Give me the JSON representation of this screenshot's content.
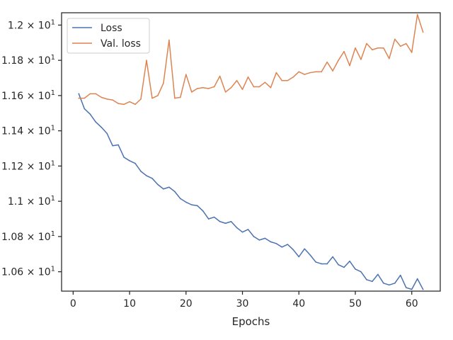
{
  "chart_data": {
    "type": "line",
    "title": "",
    "xlabel": "Epochs",
    "ylabel": "",
    "xlim": [
      -2.05,
      65.05
    ],
    "ylim": [
      10.49,
      12.07
    ],
    "x_ticks": [
      {
        "value": 0,
        "label": "0"
      },
      {
        "value": 10,
        "label": "10"
      },
      {
        "value": 20,
        "label": "20"
      },
      {
        "value": 30,
        "label": "30"
      },
      {
        "value": 40,
        "label": "40"
      },
      {
        "value": 50,
        "label": "50"
      },
      {
        "value": 60,
        "label": "60"
      }
    ],
    "y_ticks": [
      {
        "value": 10.6,
        "mantissa": "1.06",
        "label": "1.06 × 10^1"
      },
      {
        "value": 10.8,
        "mantissa": "1.08",
        "label": "1.08 × 10^1"
      },
      {
        "value": 11.0,
        "mantissa": "1.1",
        "label": "1.1 × 10^1"
      },
      {
        "value": 11.2,
        "mantissa": "1.12",
        "label": "1.12 × 10^1"
      },
      {
        "value": 11.4,
        "mantissa": "1.14",
        "label": "1.14 × 10^1"
      },
      {
        "value": 11.6,
        "mantissa": "1.16",
        "label": "1.16 × 10^1"
      },
      {
        "value": 11.8,
        "mantissa": "1.18",
        "label": "1.18 × 10^1"
      },
      {
        "value": 12.0,
        "mantissa": "1.2",
        "label": "1.2 × 10^1"
      }
    ],
    "y_tick_base": "10",
    "y_tick_exponent": "1",
    "y_tick_times": "×",
    "grid": false,
    "legend_position": "top-left",
    "x": [
      1,
      2,
      3,
      4,
      5,
      6,
      7,
      8,
      9,
      10,
      11,
      12,
      13,
      14,
      15,
      16,
      17,
      18,
      19,
      20,
      21,
      22,
      23,
      24,
      25,
      26,
      27,
      28,
      29,
      30,
      31,
      32,
      33,
      34,
      35,
      36,
      37,
      38,
      39,
      40,
      41,
      42,
      43,
      44,
      45,
      46,
      47,
      48,
      49,
      50,
      51,
      52,
      53,
      54,
      55,
      56,
      57,
      58,
      59,
      60,
      61,
      62
    ],
    "series": [
      {
        "name": "Loss",
        "color": "#4c72b0",
        "values": [
          11.61,
          11.525,
          11.495,
          11.45,
          11.42,
          11.385,
          11.315,
          11.32,
          11.25,
          11.23,
          11.215,
          11.17,
          11.145,
          11.13,
          11.095,
          11.07,
          11.08,
          11.055,
          11.015,
          10.995,
          10.98,
          10.975,
          10.945,
          10.9,
          10.91,
          10.885,
          10.875,
          10.885,
          10.85,
          10.825,
          10.84,
          10.8,
          10.78,
          10.79,
          10.77,
          10.76,
          10.74,
          10.755,
          10.725,
          10.685,
          10.73,
          10.695,
          10.655,
          10.645,
          10.645,
          10.685,
          10.64,
          10.625,
          10.66,
          10.615,
          10.6,
          10.555,
          10.545,
          10.585,
          10.535,
          10.525,
          10.535,
          10.58,
          10.51,
          10.5,
          10.56,
          10.5
        ]
      },
      {
        "name": "Val. loss",
        "color": "#dd8452",
        "values": [
          11.585,
          11.585,
          11.61,
          11.61,
          11.59,
          11.58,
          11.575,
          11.555,
          11.55,
          11.565,
          11.55,
          11.58,
          11.8,
          11.585,
          11.6,
          11.67,
          11.915,
          11.585,
          11.59,
          11.72,
          11.62,
          11.64,
          11.645,
          11.64,
          11.65,
          11.71,
          11.62,
          11.645,
          11.685,
          11.635,
          11.705,
          11.65,
          11.65,
          11.675,
          11.645,
          11.73,
          11.685,
          11.685,
          11.705,
          11.735,
          11.72,
          11.73,
          11.735,
          11.735,
          11.79,
          11.74,
          11.8,
          11.85,
          11.77,
          11.87,
          11.805,
          11.895,
          11.86,
          11.87,
          11.87,
          11.81,
          11.92,
          11.88,
          11.895,
          11.845,
          12.06,
          11.96
        ]
      }
    ]
  }
}
